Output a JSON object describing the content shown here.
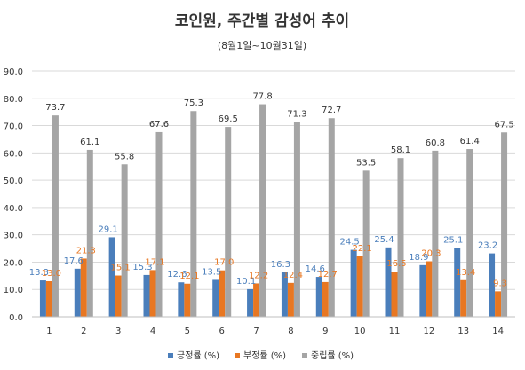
{
  "chart_data": {
    "type": "bar",
    "title": "코인원, 주간별 감성어 추이",
    "subtitle": "(8월1일~10월31일)",
    "categories": [
      "1",
      "2",
      "3",
      "4",
      "5",
      "6",
      "7",
      "8",
      "9",
      "10",
      "11",
      "12",
      "13",
      "14"
    ],
    "y_ticks": [
      "0.0",
      "10.0",
      "20.0",
      "30.0",
      "40.0",
      "50.0",
      "60.0",
      "70.0",
      "80.0",
      "90.0"
    ],
    "ylim": [
      0,
      90
    ],
    "grid": true,
    "legend_position": "bottom",
    "series": [
      {
        "name": "긍정률 (%)",
        "color": "#4a7ebb",
        "values": [
          13.3,
          17.6,
          29.1,
          15.3,
          12.6,
          13.5,
          10.1,
          16.3,
          14.6,
          24.5,
          25.4,
          18.9,
          25.1,
          23.2
        ]
      },
      {
        "name": "부정률 (%)",
        "color": "#e87722",
        "values": [
          13.0,
          21.3,
          15.1,
          17.1,
          12.1,
          17.0,
          12.2,
          12.4,
          12.7,
          22.1,
          16.5,
          20.3,
          13.4,
          9.3
        ]
      },
      {
        "name": "중립률 (%)",
        "color": "#a5a5a5",
        "values": [
          73.7,
          61.1,
          55.8,
          67.6,
          75.3,
          69.5,
          77.8,
          71.3,
          72.7,
          53.5,
          58.1,
          60.8,
          61.4,
          67.5
        ]
      }
    ]
  }
}
